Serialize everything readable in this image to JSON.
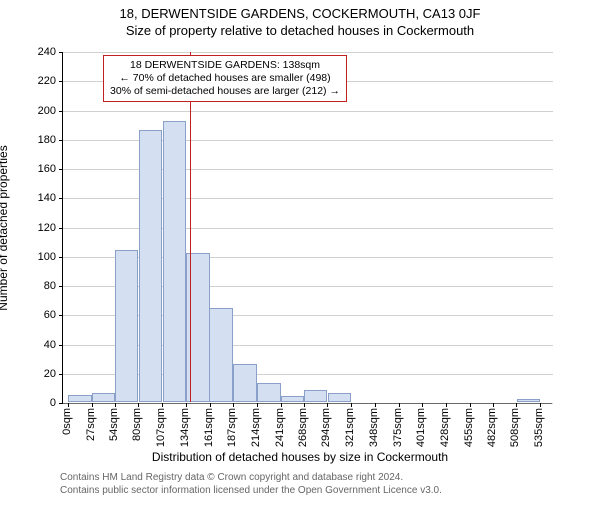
{
  "header": {
    "line1": "18, DERWENTSIDE GARDENS, COCKERMOUTH, CA13 0JF",
    "line2": "Size of property relative to detached houses in Cockermouth"
  },
  "chart": {
    "type": "histogram",
    "ylabel": "Number of detached properties",
    "xlabel": "Distribution of detached houses by size in Cockermouth",
    "ylim": [
      0,
      240
    ],
    "ytick_step": 20,
    "plot_background": "#ffffff",
    "grid_color": "#b0b0b0",
    "bar_fill": "#d4dff2",
    "bar_border": "#8aa0c8",
    "vline_color": "#c02020",
    "vline_x_value": 138,
    "x_bin_width": 26.5,
    "label_fontsize": 12,
    "tick_fontsize": 11,
    "xticks": [
      {
        "v": 0,
        "label": "0sqm"
      },
      {
        "v": 27,
        "label": "27sqm"
      },
      {
        "v": 54,
        "label": "54sqm"
      },
      {
        "v": 80,
        "label": "80sqm"
      },
      {
        "v": 107,
        "label": "107sqm"
      },
      {
        "v": 134,
        "label": "134sqm"
      },
      {
        "v": 161,
        "label": "161sqm"
      },
      {
        "v": 187,
        "label": "187sqm"
      },
      {
        "v": 214,
        "label": "214sqm"
      },
      {
        "v": 241,
        "label": "241sqm"
      },
      {
        "v": 268,
        "label": "268sqm"
      },
      {
        "v": 294,
        "label": "294sqm"
      },
      {
        "v": 321,
        "label": "321sqm"
      },
      {
        "v": 348,
        "label": "348sqm"
      },
      {
        "v": 375,
        "label": "375sqm"
      },
      {
        "v": 401,
        "label": "401sqm"
      },
      {
        "v": 428,
        "label": "428sqm"
      },
      {
        "v": 455,
        "label": "455sqm"
      },
      {
        "v": 482,
        "label": "482sqm"
      },
      {
        "v": 508,
        "label": "508sqm"
      },
      {
        "v": 535,
        "label": "535sqm"
      }
    ],
    "bars": [
      {
        "x": 27,
        "y": 5
      },
      {
        "x": 54,
        "y": 6
      },
      {
        "x": 80,
        "y": 104
      },
      {
        "x": 107,
        "y": 186
      },
      {
        "x": 134,
        "y": 192
      },
      {
        "x": 161,
        "y": 102
      },
      {
        "x": 187,
        "y": 64
      },
      {
        "x": 214,
        "y": 26
      },
      {
        "x": 241,
        "y": 13
      },
      {
        "x": 268,
        "y": 4
      },
      {
        "x": 294,
        "y": 8
      },
      {
        "x": 321,
        "y": 6
      },
      {
        "x": 535,
        "y": 2
      }
    ],
    "annotation": {
      "line1": "18 DERWENTSIDE GARDENS: 138sqm",
      "line2": "← 70% of detached houses are smaller (498)",
      "line3": "30% of semi-detached houses are larger (212) →",
      "border_color": "#c02020",
      "bg_color": "#ffffff",
      "fontsize": 10.5,
      "left_value": 40,
      "top_value": 238
    }
  },
  "footer": {
    "line1": "Contains HM Land Registry data © Crown copyright and database right 2024.",
    "line2": "Contains public sector information licensed under the Open Government Licence v3.0."
  }
}
